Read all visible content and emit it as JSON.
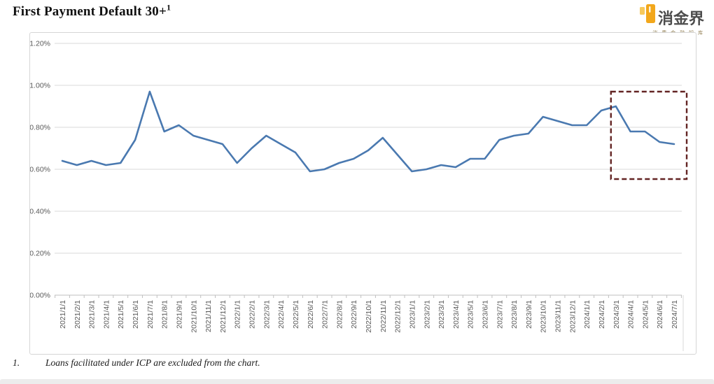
{
  "header": {
    "title": "First Payment Default 30+",
    "title_superscript": "1",
    "logo": {
      "name": "消金界",
      "tagline": "消 费 金 融 知 库",
      "icon": "brand-candle-icon",
      "accent_color": "#F2A71B",
      "accent_light_color": "#F7C95C",
      "name_color": "#4D4D4D"
    }
  },
  "chart_data": {
    "type": "line",
    "title": "First Payment Default 30+",
    "xlabel": "",
    "ylabel": "",
    "ylim": [
      0,
      1.2
    ],
    "y_ticks": [
      "0.00%",
      "0.20%",
      "0.40%",
      "0.60%",
      "0.80%",
      "1.00%",
      "1.20%"
    ],
    "grid": true,
    "legend": "none",
    "categories": [
      "2021/1/1",
      "2021/2/1",
      "2021/3/1",
      "2021/4/1",
      "2021/5/1",
      "2021/6/1",
      "2021/7/1",
      "2021/8/1",
      "2021/9/1",
      "2021/10/1",
      "2021/11/1",
      "2021/12/1",
      "2022/1/1",
      "2022/2/1",
      "2022/3/1",
      "2022/4/1",
      "2022/5/1",
      "2022/6/1",
      "2022/7/1",
      "2022/8/1",
      "2022/9/1",
      "2022/10/1",
      "2022/11/1",
      "2022/12/1",
      "2023/1/1",
      "2023/2/1",
      "2023/3/1",
      "2023/4/1",
      "2023/5/1",
      "2023/6/1",
      "2023/7/1",
      "2023/8/1",
      "2023/9/1",
      "2023/10/1",
      "2023/11/1",
      "2023/12/1",
      "2024/1/1",
      "2024/2/1",
      "2024/3/1",
      "2024/4/1",
      "2024/5/1",
      "2024/6/1",
      "2024/7/1"
    ],
    "values_percent": [
      0.64,
      0.62,
      0.64,
      0.62,
      0.63,
      0.74,
      0.97,
      0.78,
      0.81,
      0.76,
      0.74,
      0.72,
      0.63,
      0.7,
      0.76,
      0.72,
      0.68,
      0.59,
      0.6,
      0.63,
      0.65,
      0.69,
      0.75,
      0.67,
      0.59,
      0.6,
      0.62,
      0.61,
      0.65,
      0.65,
      0.74,
      0.76,
      0.77,
      0.85,
      0.83,
      0.81,
      0.81,
      0.88,
      0.9,
      0.78,
      0.78,
      0.73,
      0.72
    ],
    "annotation_box": {
      "from_category": "2024/3/1",
      "to_category": "2024/7/1",
      "style": "dashed",
      "color": "#632423"
    },
    "line_color": "#4A79B0"
  },
  "footnote": {
    "marker": "1.",
    "text": "Loans facilitated under ICP are excluded from the chart."
  },
  "colors": {
    "grid": "#D9D9D9",
    "axis": "#BFBFBF",
    "tick_label": "#595959",
    "frame_border": "#D6D6D6"
  }
}
